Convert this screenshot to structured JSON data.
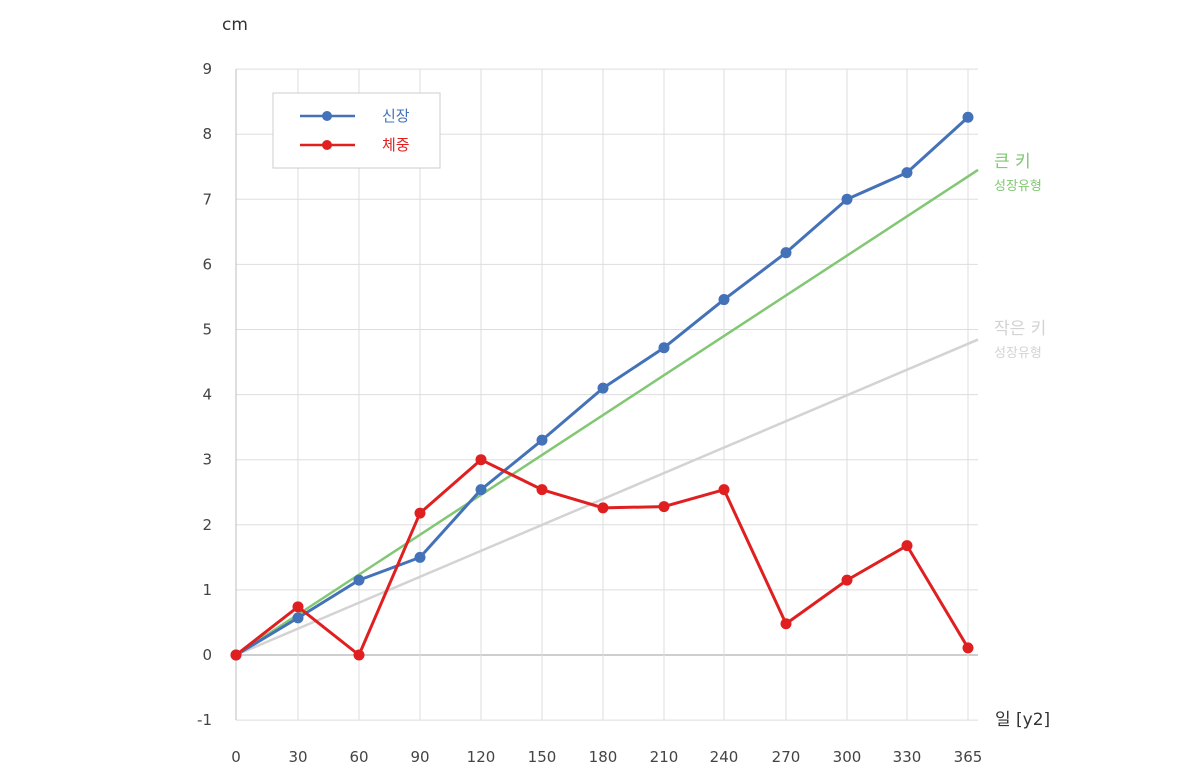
{
  "chart_data": {
    "type": "line",
    "ylabel": "cm",
    "xlabel": "일 [y2]",
    "x": [
      0,
      30,
      60,
      90,
      120,
      150,
      180,
      210,
      240,
      270,
      300,
      330,
      365
    ],
    "xticks": [
      "0",
      "30",
      "60",
      "90",
      "120",
      "150",
      "180",
      "210",
      "240",
      "270",
      "300",
      "330",
      "365"
    ],
    "yticks": [
      "-1",
      "0",
      "1",
      "2",
      "3",
      "4",
      "5",
      "6",
      "7",
      "8",
      "9"
    ],
    "ylim": [
      -1,
      9
    ],
    "grid": true,
    "legend_position": "top-left",
    "series": [
      {
        "name": "신장",
        "color": "#4472b8",
        "values": [
          0,
          0.57,
          1.15,
          1.5,
          2.54,
          3.3,
          4.1,
          4.72,
          5.46,
          6.18,
          7.0,
          7.41,
          8.26
        ]
      },
      {
        "name": "체중",
        "color": "#e02020",
        "values": [
          0,
          0.74,
          0,
          2.18,
          3.0,
          2.54,
          2.26,
          2.28,
          2.54,
          0.48,
          1.15,
          1.68,
          0.11
        ]
      }
    ],
    "reference_lines": [
      {
        "label": "큰 키",
        "sublabel": "성장유형",
        "color": "#82c773",
        "from": [
          0,
          0
        ],
        "to": [
          365,
          7.35
        ]
      },
      {
        "label": "작은 키",
        "sublabel": "성장유형",
        "color": "#d3d3d3",
        "from": [
          0,
          0
        ],
        "to": [
          365,
          4.78
        ]
      }
    ]
  }
}
